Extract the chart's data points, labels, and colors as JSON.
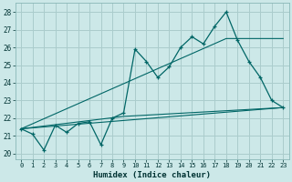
{
  "xlabel": "Humidex (Indice chaleur)",
  "background_color": "#cce8e8",
  "grid_color": "#aacccc",
  "line_color": "#006666",
  "xlim": [
    -0.5,
    23.5
  ],
  "ylim": [
    19.7,
    28.5
  ],
  "xticks": [
    0,
    1,
    2,
    3,
    4,
    5,
    6,
    7,
    8,
    9,
    10,
    11,
    12,
    13,
    14,
    15,
    16,
    17,
    18,
    19,
    20,
    21,
    22,
    23
  ],
  "yticks": [
    20,
    21,
    22,
    23,
    24,
    25,
    26,
    27,
    28
  ],
  "zigzag_x": [
    0,
    1,
    2,
    3,
    4,
    5,
    6,
    7,
    8,
    9,
    10,
    11,
    12,
    13,
    14,
    15,
    16,
    17,
    18,
    19,
    20,
    21,
    22,
    23
  ],
  "zigzag_y": [
    21.4,
    21.1,
    20.2,
    21.6,
    21.2,
    21.7,
    21.8,
    20.5,
    22.0,
    22.3,
    25.9,
    25.2,
    24.3,
    24.9,
    26.0,
    26.6,
    26.2,
    27.2,
    28.0,
    26.4,
    25.2,
    24.3,
    23.0,
    22.6
  ],
  "upper_trend_x": [
    0,
    18,
    23
  ],
  "upper_trend_y": [
    21.4,
    26.5,
    26.5
  ],
  "lower_trend_x": [
    0,
    23
  ],
  "lower_trend_y": [
    21.4,
    22.6
  ],
  "flat_line_x": [
    0,
    9,
    23
  ],
  "flat_line_y": [
    21.4,
    22.1,
    22.6
  ]
}
